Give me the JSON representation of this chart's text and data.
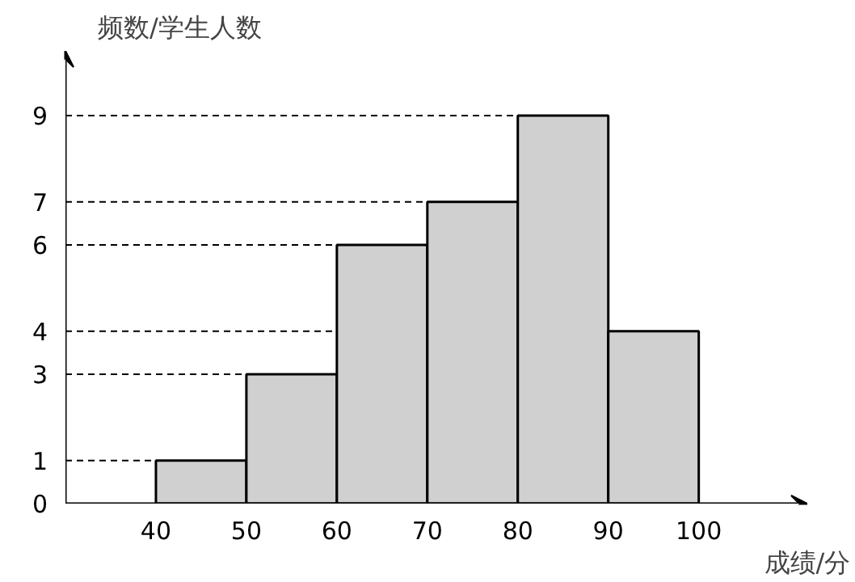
{
  "chart_data": {
    "type": "histogram",
    "ylabel": "频数/学生人数",
    "xlabel": "成绩/分",
    "bins": [
      40,
      50,
      60,
      70,
      80,
      90,
      100
    ],
    "values": [
      1,
      3,
      6,
      7,
      9,
      4
    ],
    "color": "#d0d0d0",
    "xlim": [
      30,
      112
    ],
    "ylim": [
      0,
      10.5
    ],
    "xticks": [
      40,
      50,
      60,
      70,
      80,
      90,
      100
    ],
    "yticks": [
      0,
      1,
      3,
      4,
      6,
      7,
      9
    ],
    "ref_lines": [
      {
        "axis": "y",
        "value": 1,
        "line_style": "dashed"
      },
      {
        "axis": "y",
        "value": 3,
        "line_style": "dashed"
      },
      {
        "axis": "y",
        "value": 4,
        "line_style": "dashed"
      },
      {
        "axis": "y",
        "value": 6,
        "line_style": "dashed"
      },
      {
        "axis": "y",
        "value": 7,
        "line_style": "dashed"
      },
      {
        "axis": "y",
        "value": 9,
        "line_style": "dashed"
      }
    ]
  }
}
